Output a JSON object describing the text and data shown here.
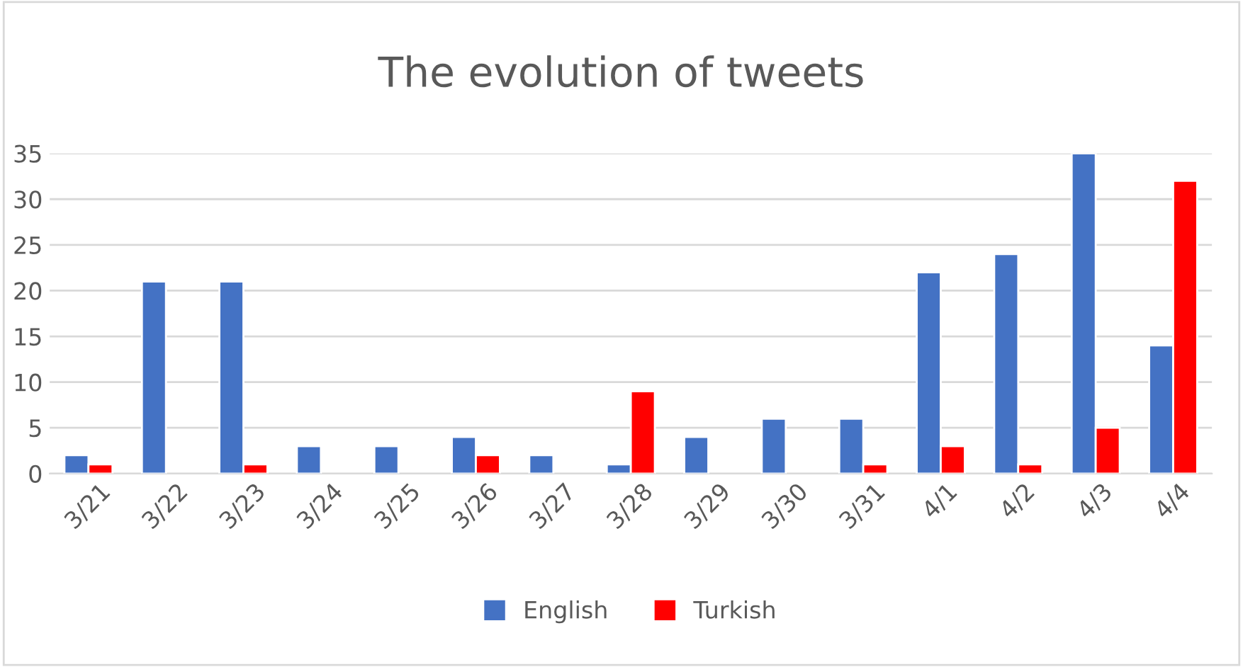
{
  "chart_data": {
    "type": "bar",
    "title": "The evolution of tweets",
    "categories": [
      "3/21",
      "3/22",
      "3/23",
      "3/24",
      "3/25",
      "3/26",
      "3/27",
      "3/28",
      "3/29",
      "3/30",
      "3/31",
      "4/1",
      "4/2",
      "4/3",
      "4/4"
    ],
    "series": [
      {
        "name": "English",
        "color": "#4472c4",
        "values": [
          2,
          21,
          21,
          3,
          3,
          4,
          2,
          1,
          4,
          6,
          6,
          22,
          24,
          35,
          14
        ]
      },
      {
        "name": "Turkish",
        "color": "#ff0000",
        "values": [
          1,
          null,
          1,
          null,
          null,
          2,
          null,
          9,
          null,
          null,
          1,
          3,
          1,
          5,
          32
        ]
      }
    ],
    "ylim": [
      0,
      35
    ],
    "yticks": [
      0,
      5,
      10,
      15,
      20,
      25,
      30,
      35
    ],
    "grid": "y",
    "legend": "bottom"
  }
}
